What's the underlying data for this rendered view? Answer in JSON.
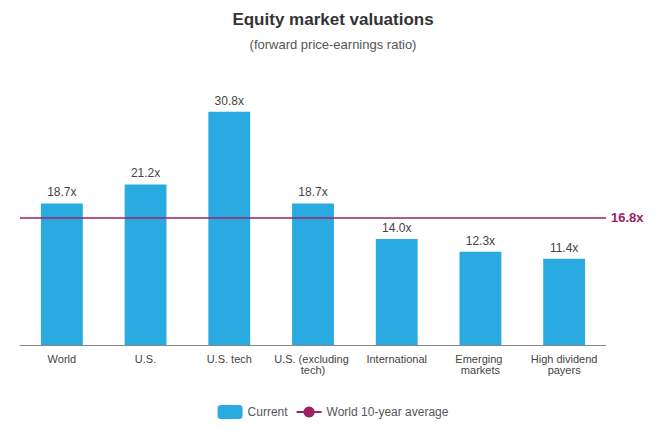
{
  "chart_data": {
    "type": "bar",
    "title": "Equity market valuations",
    "subtitle": "(forward price-earnings ratio)",
    "categories": [
      "World",
      "U.S.",
      "U.S. tech",
      "U.S. (excluding tech)",
      "International",
      "Emerging markets",
      "High dividend\npayers"
    ],
    "series": [
      {
        "name": "Current",
        "type": "bar",
        "color": "#29ABE2",
        "values": [
          18.7,
          21.2,
          30.8,
          18.7,
          14.0,
          12.3,
          11.4
        ],
        "value_labels": [
          "18.7x",
          "21.2x",
          "30.8x",
          "18.7x",
          "14.0x",
          "12.3x",
          "11.4x"
        ]
      }
    ],
    "reference_line": {
      "name": "World 10-year average",
      "value": 16.8,
      "label": "16.8x",
      "color": "#9B2265"
    },
    "data_labels": true,
    "ylim": [
      0,
      35
    ],
    "grid": false,
    "tick_labels": "x",
    "legend": "bottom"
  }
}
